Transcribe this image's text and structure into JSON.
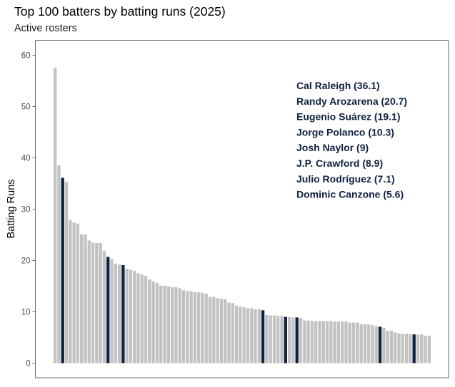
{
  "chart_data": {
    "type": "bar",
    "title": "Top 100 batters by batting runs (2025)",
    "subtitle": "Active rosters",
    "xlabel": "",
    "ylabel": "Batting Runs",
    "ylim": [
      -2,
      63
    ],
    "yticks": [
      "0",
      "10",
      "20",
      "30",
      "40",
      "50",
      "60"
    ],
    "ytick_values": [
      0,
      10,
      20,
      30,
      40,
      50,
      60
    ],
    "grid": false,
    "colors": {
      "default": "#c2c2c2",
      "highlight": "#0e2140",
      "annotation": "#0e2140"
    },
    "values": [
      57.5,
      38.5,
      36.1,
      35.3,
      27.9,
      27.4,
      27.2,
      25.1,
      25.1,
      23.9,
      23.5,
      23.4,
      23.4,
      21.9,
      20.7,
      20.3,
      19.4,
      19.2,
      19.1,
      18.4,
      18.2,
      18.0,
      17.5,
      17.3,
      17.0,
      16.3,
      15.9,
      15.6,
      15.1,
      15.1,
      15.0,
      14.8,
      14.8,
      14.6,
      14.2,
      14.0,
      14.0,
      13.8,
      13.8,
      13.7,
      13.5,
      12.9,
      12.9,
      12.7,
      12.5,
      12.5,
      11.8,
      11.7,
      11.2,
      11.0,
      10.9,
      10.7,
      10.7,
      10.5,
      10.5,
      10.3,
      9.4,
      9.3,
      9.3,
      9.2,
      9.2,
      9.0,
      9.0,
      8.9,
      8.9,
      8.8,
      8.3,
      8.3,
      8.2,
      8.2,
      8.2,
      8.2,
      8.2,
      8.2,
      8.1,
      8.1,
      8.1,
      8.1,
      7.9,
      7.9,
      7.9,
      7.6,
      7.6,
      7.5,
      7.4,
      7.2,
      7.1,
      6.9,
      6.3,
      6.3,
      6.0,
      5.8,
      5.7,
      5.7,
      5.6,
      5.6,
      5.6,
      5.6,
      5.3,
      5.3
    ],
    "highlighted": [
      {
        "rank": 3,
        "name": "Cal Raleigh",
        "value": 36.1,
        "label": "Cal Raleigh (36.1)"
      },
      {
        "rank": 15,
        "name": "Randy Arozarena",
        "value": 20.7,
        "label": "Randy Arozarena (20.7)"
      },
      {
        "rank": 19,
        "name": "Eugenio Suárez",
        "value": 19.1,
        "label": "Eugenio Suárez (19.1)"
      },
      {
        "rank": 56,
        "name": "Jorge Polanco",
        "value": 10.3,
        "label": "Jorge Polanco (10.3)"
      },
      {
        "rank": 62,
        "name": "Josh Naylor",
        "value": 9,
        "label": "Josh Naylor (9)"
      },
      {
        "rank": 65,
        "name": "J.P. Crawford",
        "value": 8.9,
        "label": "J.P. Crawford (8.9)"
      },
      {
        "rank": 87,
        "name": "Julio Rodríguez",
        "value": 7.1,
        "label": "Julio Rodríguez (7.1)"
      },
      {
        "rank": 96,
        "name": "Dominic Canzone",
        "value": 5.6,
        "label": "Dominic Canzone (5.6)"
      }
    ],
    "legend": "none",
    "annotation_placement": "top-right"
  }
}
